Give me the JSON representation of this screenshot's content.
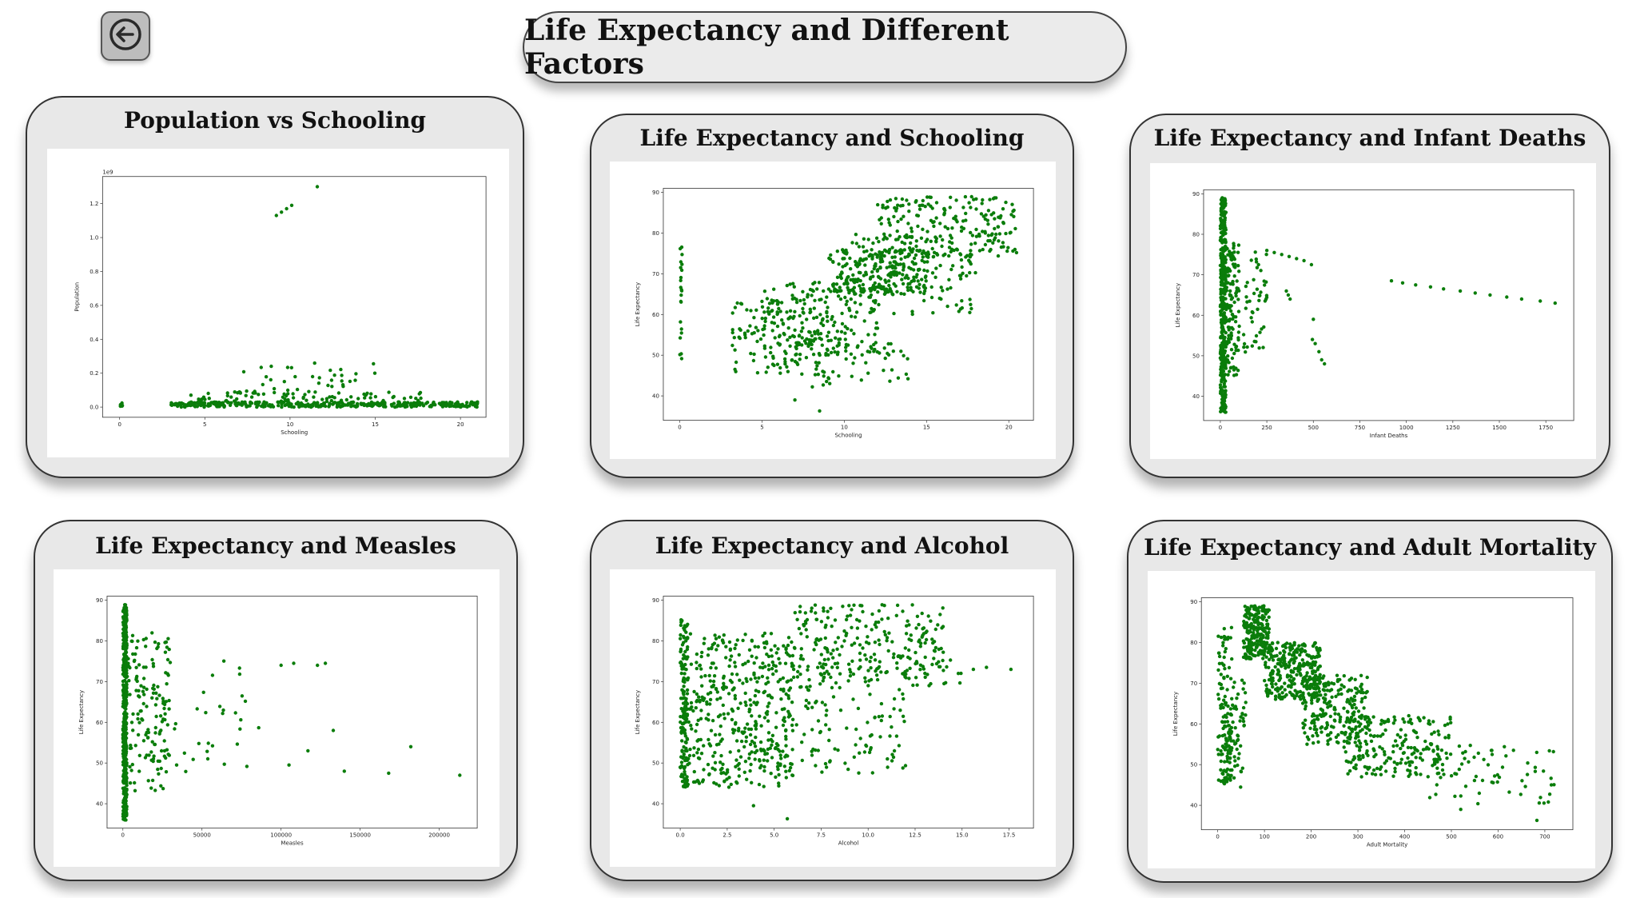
{
  "header": {
    "title": "Life Expectancy and Different Factors",
    "back_icon": "arrow-left-circle-icon"
  },
  "colors": {
    "points": "#0a7d0a",
    "panel_bg": "#e8e8e8",
    "title_bg": "#ebebeb"
  },
  "charts": [
    {
      "title": "Population vs Schooling",
      "chart_data": {
        "type": "scatter",
        "xlabel": "Schooling",
        "ylabel": "Population",
        "offset_label": "1e9",
        "xlim": [
          -1,
          21.5
        ],
        "ylim": [
          -0.06,
          1.36
        ],
        "xticks": [
          0,
          5,
          10,
          15,
          20
        ],
        "xtick_labels": [
          "0",
          "5",
          "10",
          "15",
          "20"
        ],
        "yticks": [
          0.0,
          0.2,
          0.4,
          0.6,
          0.8,
          1.0,
          1.2
        ],
        "ytick_labels": [
          "0.0",
          "0.2",
          "0.4",
          "0.6",
          "0.8",
          "1.0",
          "1.2"
        ],
        "clusters": [
          {
            "x": [
              0,
              0.2
            ],
            "y": [
              0,
              0.03
            ],
            "n": 6
          },
          {
            "x": [
              3,
              21
            ],
            "y": [
              0,
              0.03
            ],
            "n": 380
          },
          {
            "x": [
              4,
              18
            ],
            "y": [
              0.03,
              0.09
            ],
            "n": 70
          },
          {
            "x": [
              7,
              15
            ],
            "y": [
              0.08,
              0.26
            ],
            "n": 40
          }
        ],
        "points": [
          [
            9.2,
            1.13
          ],
          [
            9.5,
            1.15
          ],
          [
            9.8,
            1.17
          ],
          [
            10.1,
            1.19
          ],
          [
            11.6,
            1.3
          ]
        ]
      }
    },
    {
      "title": "Life Expectancy and Schooling",
      "chart_data": {
        "type": "scatter",
        "xlabel": "Schooling",
        "ylabel": "Life Expectancy",
        "xlim": [
          -1,
          21.5
        ],
        "ylim": [
          34,
          91
        ],
        "xticks": [
          0,
          5,
          10,
          15,
          20
        ],
        "xtick_labels": [
          "0",
          "5",
          "10",
          "15",
          "20"
        ],
        "yticks": [
          40,
          50,
          60,
          70,
          80,
          90
        ],
        "ytick_labels": [
          "40",
          "50",
          "60",
          "70",
          "80",
          "90"
        ],
        "clusters": [
          {
            "x": [
              0,
              0.15
            ],
            "y": [
              49,
              78
            ],
            "n": 22
          },
          {
            "x": [
              3,
              9
            ],
            "y": [
              45,
              64
            ],
            "n": 140
          },
          {
            "x": [
              5,
              12
            ],
            "y": [
              50,
              68
            ],
            "n": 160
          },
          {
            "x": [
              8,
              14
            ],
            "y": [
              42,
              58
            ],
            "n": 60
          },
          {
            "x": [
              9,
              15
            ],
            "y": [
              65,
              76
            ],
            "n": 220
          },
          {
            "x": [
              12,
              20.5
            ],
            "y": [
              74,
              89
            ],
            "n": 220
          },
          {
            "x": [
              10,
              18
            ],
            "y": [
              60,
              80
            ],
            "n": 120
          }
        ],
        "points": [
          [
            8.5,
            36.3
          ],
          [
            7,
            39
          ]
        ]
      }
    },
    {
      "title": "Life Expectancy and Infant Deaths",
      "chart_data": {
        "type": "scatter",
        "xlabel": "Infant Deaths",
        "ylabel": "Life Expectancy",
        "xlim": [
          -90,
          1900
        ],
        "ylim": [
          34,
          91
        ],
        "xticks": [
          0,
          250,
          500,
          750,
          1000,
          1250,
          1500,
          1750
        ],
        "xtick_labels": [
          "0",
          "250",
          "500",
          "750",
          "1000",
          "1250",
          "1500",
          "1750"
        ],
        "yticks": [
          40,
          50,
          60,
          70,
          80,
          90
        ],
        "ytick_labels": [
          "40",
          "50",
          "60",
          "70",
          "80",
          "90"
        ],
        "clusters": [
          {
            "x": [
              0,
              30
            ],
            "y": [
              36,
              89
            ],
            "n": 420
          },
          {
            "x": [
              30,
              100
            ],
            "y": [
              45,
              78
            ],
            "n": 120
          },
          {
            "x": [
              100,
              250
            ],
            "y": [
              50,
              76
            ],
            "n": 50
          }
        ],
        "points": [
          [
            250,
            76
          ],
          [
            290,
            75.5
          ],
          [
            330,
            75
          ],
          [
            370,
            74.5
          ],
          [
            410,
            74
          ],
          [
            450,
            73.5
          ],
          [
            490,
            72.5
          ],
          [
            355,
            66
          ],
          [
            365,
            65
          ],
          [
            375,
            64
          ],
          [
            495,
            54
          ],
          [
            510,
            53
          ],
          [
            530,
            51
          ],
          [
            545,
            49
          ],
          [
            560,
            48
          ],
          [
            500,
            59
          ],
          [
            920,
            68.5
          ],
          [
            980,
            68
          ],
          [
            1050,
            67.5
          ],
          [
            1130,
            67
          ],
          [
            1200,
            66.5
          ],
          [
            1290,
            66
          ],
          [
            1370,
            65.5
          ],
          [
            1450,
            65
          ],
          [
            1540,
            64.5
          ],
          [
            1620,
            64
          ],
          [
            1720,
            63.5
          ],
          [
            1800,
            63
          ]
        ]
      }
    },
    {
      "title": "Life Expectancy and Measles",
      "chart_data": {
        "type": "scatter",
        "xlabel": "Measles",
        "ylabel": "Life Expectancy",
        "xlim": [
          -10000,
          224000
        ],
        "ylim": [
          34,
          91
        ],
        "xticks": [
          0,
          50000,
          100000,
          150000,
          200000
        ],
        "xtick_labels": [
          "0",
          "50000",
          "100000",
          "150000",
          "200000"
        ],
        "yticks": [
          40,
          50,
          60,
          70,
          80,
          90
        ],
        "ytick_labels": [
          "40",
          "50",
          "60",
          "70",
          "80",
          "90"
        ],
        "clusters": [
          {
            "x": [
              0,
              2500
            ],
            "y": [
              36,
              89
            ],
            "n": 450
          },
          {
            "x": [
              2500,
              30000
            ],
            "y": [
              43,
              82
            ],
            "n": 150
          },
          {
            "x": [
              30000,
              90000
            ],
            "y": [
              47,
              76
            ],
            "n": 30
          }
        ],
        "points": [
          [
            100000,
            74
          ],
          [
            108000,
            74.5
          ],
          [
            123000,
            74
          ],
          [
            128000,
            74.5
          ],
          [
            133000,
            58
          ],
          [
            105000,
            49.5
          ],
          [
            117000,
            53
          ],
          [
            140000,
            48
          ],
          [
            168000,
            47.5
          ],
          [
            182000,
            54
          ],
          [
            213000,
            47
          ]
        ]
      }
    },
    {
      "title": "Life Expectancy and Alcohol",
      "chart_data": {
        "type": "scatter",
        "xlabel": "Alcohol",
        "ylabel": "Life Expectancy",
        "xlim": [
          -0.9,
          18.8
        ],
        "ylim": [
          34,
          91
        ],
        "xticks": [
          0.0,
          2.5,
          5.0,
          7.5,
          10.0,
          12.5,
          15.0,
          17.5
        ],
        "xtick_labels": [
          "0.0",
          "2.5",
          "5.0",
          "7.5",
          "10.0",
          "12.5",
          "15.0",
          "17.5"
        ],
        "yticks": [
          40,
          50,
          60,
          70,
          80,
          90
        ],
        "ytick_labels": [
          "40",
          "50",
          "60",
          "70",
          "80",
          "90"
        ],
        "clusters": [
          {
            "x": [
              0,
              0.4
            ],
            "y": [
              44,
              86
            ],
            "n": 160
          },
          {
            "x": [
              0.4,
              6
            ],
            "y": [
              44,
              82
            ],
            "n": 380
          },
          {
            "x": [
              4,
              12
            ],
            "y": [
              47,
              80
            ],
            "n": 200
          },
          {
            "x": [
              6,
              14
            ],
            "y": [
              70,
              89
            ],
            "n": 200
          },
          {
            "x": [
              12,
              15
            ],
            "y": [
              69,
              78
            ],
            "n": 25
          }
        ],
        "points": [
          [
            5.7,
            36.3
          ],
          [
            3.9,
            39.5
          ],
          [
            15.6,
            73
          ],
          [
            16.3,
            73.5
          ],
          [
            17.6,
            73
          ],
          [
            14.8,
            72
          ]
        ]
      }
    },
    {
      "title": "Life Expectancy and Adult Mortality",
      "chart_data": {
        "type": "scatter",
        "xlabel": "Adult Mortality",
        "ylabel": "Life Expectancy",
        "xlim": [
          -35,
          760
        ],
        "ylim": [
          34,
          91
        ],
        "xticks": [
          0,
          100,
          200,
          300,
          400,
          500,
          600,
          700
        ],
        "xtick_labels": [
          "0",
          "100",
          "200",
          "300",
          "400",
          "500",
          "600",
          "700"
        ],
        "yticks": [
          40,
          50,
          60,
          70,
          80,
          90
        ],
        "ytick_labels": [
          "40",
          "50",
          "60",
          "70",
          "80",
          "90"
        ],
        "clusters": [
          {
            "x": [
              0,
              30
            ],
            "y": [
              45,
              84
            ],
            "n": 120
          },
          {
            "x": [
              20,
              60
            ],
            "y": [
              44,
              72
            ],
            "n": 70
          },
          {
            "x": [
              55,
              110
            ],
            "y": [
              76,
              89
            ],
            "n": 220
          },
          {
            "x": [
              100,
              220
            ],
            "y": [
              66,
              80
            ],
            "n": 300
          },
          {
            "x": [
              180,
              320
            ],
            "y": [
              55,
              72
            ],
            "n": 230
          },
          {
            "x": [
              270,
              500
            ],
            "y": [
              47,
              62
            ],
            "n": 200
          },
          {
            "x": [
              420,
              720
            ],
            "y": [
              40,
              55
            ],
            "n": 70
          }
        ],
        "points": [
          [
            683,
            36.3
          ],
          [
            714,
            45
          ],
          [
            520,
            39
          ]
        ]
      }
    }
  ]
}
